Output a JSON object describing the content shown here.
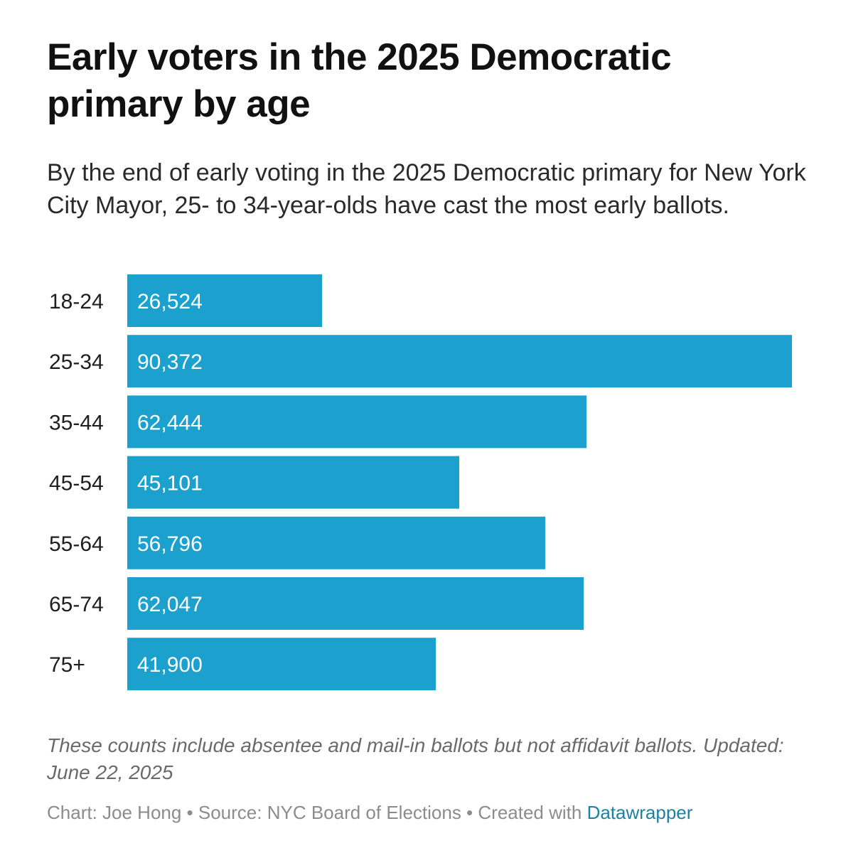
{
  "chart_data": {
    "type": "bar",
    "orientation": "horizontal",
    "title": "Early voters in the 2025 Democratic primary by age",
    "subtitle": "By the end of early voting in the 2025 Democratic primary for New York City Mayor, 25- to 34-year-olds have cast the most early ballots.",
    "categories": [
      "18-24",
      "25-34",
      "35-44",
      "45-54",
      "55-64",
      "65-74",
      "75+"
    ],
    "values": [
      26524,
      90372,
      62444,
      45101,
      56796,
      62047,
      41900
    ],
    "value_labels": [
      "26,524",
      "90,372",
      "62,444",
      "45,101",
      "56,796",
      "62,047",
      "41,900"
    ],
    "xlabel": "",
    "ylabel": "",
    "xlim": [
      0,
      90372
    ],
    "grid": false,
    "bar_color": "#1ca1cf",
    "label_color": "#ffffff"
  },
  "notes": "These counts include absentee and mail-in ballots but not affidavit ballots. Updated: June 22, 2025",
  "byline": {
    "prefix": "Chart: Joe Hong • Source: NYC Board of Elections • Created with ",
    "link": "Datawrapper"
  },
  "colors": {
    "link": "#1d81a2",
    "notes": "#6a6a6a",
    "byline": "#8c8c8c"
  }
}
